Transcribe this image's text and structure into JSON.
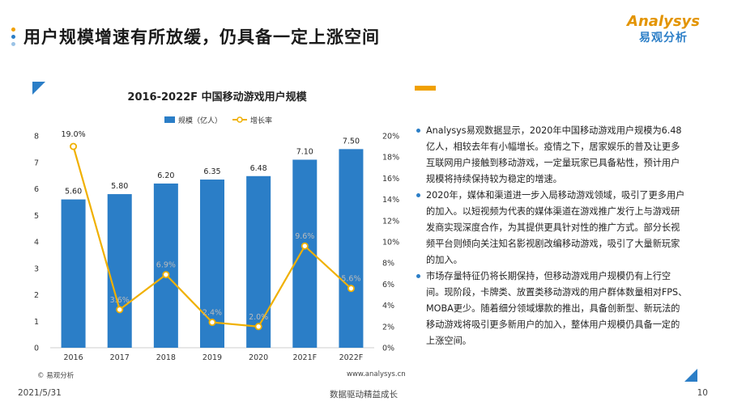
{
  "page": {
    "title": "用户规模增速有所放缓，仍具备一定上涨空间",
    "logo_en": "Analysys",
    "logo_cn": "易观分析",
    "footer_date": "2021/5/31",
    "footer_slogan": "数据驱动精益成长",
    "page_number": "10",
    "source_left": "© 易观分析",
    "source_right": "www.analysys.cn"
  },
  "colors": {
    "bar": "#2b7ec7",
    "line": "#f0b000",
    "dot1": "#f0a000",
    "dot2": "#2b7ec7",
    "dot3": "#9bc3e6",
    "axis_text": "#333333",
    "label_gray": "#bbbbbb"
  },
  "bullets": [
    "Analysys易观数据显示，2020年中国移动游戏用户规模为6.48亿人，相较去年有小幅增长。疫情之下，居家娱乐的普及让更多互联网用户接触到移动游戏，一定量玩家已具备粘性，预计用户规模将持续保持较为稳定的增速。",
    "2020年，媒体和渠道进一步入局移动游戏领域，吸引了更多用户的加入。以短视频为代表的媒体渠道在游戏推广发行上与游戏研发商实现深度合作，为其提供更具针对性的推广方式。部分长视频平台则倾向关注知名影视剧改编移动游戏，吸引了大量新玩家的加入。",
    "市场存量特征仍将长期保持，但移动游戏用户规模仍有上行空间。现阶段，卡牌类、放置类移动游戏的用户群体数量相对FPS、MOBA更少。随着细分领域爆款的推出，具备创新型、新玩法的移动游戏将吸引更多新用户的加入，整体用户规模仍具备一定的上涨空间。"
  ],
  "chart_data": {
    "type": "bar",
    "title": "2016-2022F 中国移动游戏用户规模",
    "categories": [
      "2016",
      "2017",
      "2018",
      "2019",
      "2020",
      "2021F",
      "2022F"
    ],
    "series": [
      {
        "name": "规模（亿人）",
        "type": "bar",
        "axis": "left",
        "values": [
          5.6,
          5.8,
          6.2,
          6.35,
          6.48,
          7.1,
          7.5
        ],
        "labels": [
          "5.60",
          "5.80",
          "6.20",
          "6.35",
          "6.48",
          "7.10",
          "7.50"
        ]
      },
      {
        "name": "增长率",
        "type": "line",
        "axis": "right",
        "values": [
          19.0,
          3.6,
          6.9,
          2.4,
          2.0,
          9.6,
          5.6
        ],
        "labels": [
          "19.0%",
          "3.6%",
          "6.9%",
          "2.4%",
          "2.0%",
          "9.6%",
          "5.6%"
        ]
      }
    ],
    "y_left": {
      "min": 0,
      "max": 8,
      "ticks": [
        "0",
        "1",
        "2",
        "3",
        "4",
        "5",
        "6",
        "7",
        "8"
      ]
    },
    "y_right": {
      "min": 0,
      "max": 20,
      "ticks": [
        "0%",
        "2%",
        "4%",
        "6%",
        "8%",
        "10%",
        "12%",
        "14%",
        "16%",
        "18%",
        "20%"
      ]
    },
    "legend_position": "top-center",
    "grid": false
  }
}
